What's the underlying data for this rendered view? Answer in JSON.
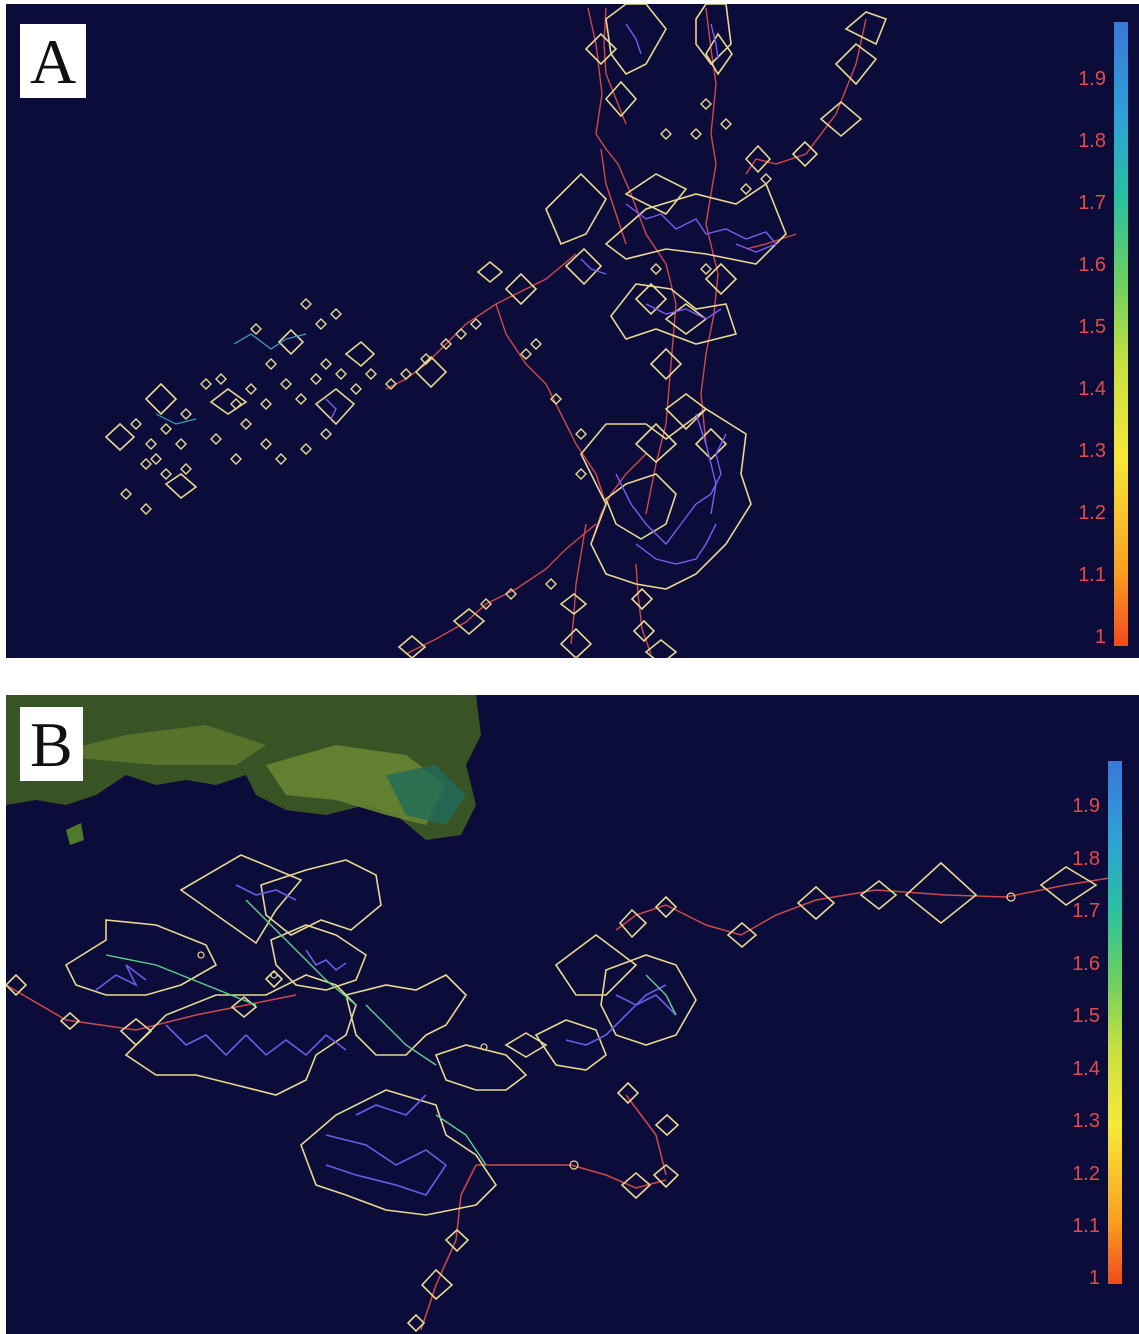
{
  "panels": [
    {
      "label": "A",
      "colorbar_ticks": [
        "1.9",
        "1.8",
        "1.7",
        "1.6",
        "1.5",
        "1.4",
        "1.3",
        "1.2",
        "1.1",
        "1"
      ]
    },
    {
      "label": "B",
      "colorbar_ticks": [
        "1.9",
        "1.8",
        "1.7",
        "1.6",
        "1.5",
        "1.4",
        "1.3",
        "1.2",
        "1.1",
        "1"
      ]
    }
  ],
  "colorbar": {
    "min": 1,
    "max": 1.95,
    "low_color": "#f24a1e",
    "mid_color": "#f7e83a",
    "high_color": "#3a78d8"
  },
  "colors": {
    "background": "#0c0c3a",
    "outline": "#e8d890",
    "fine_track": "#7a5cf0",
    "long_track": "#d04848",
    "land": "#4a6a28"
  }
}
